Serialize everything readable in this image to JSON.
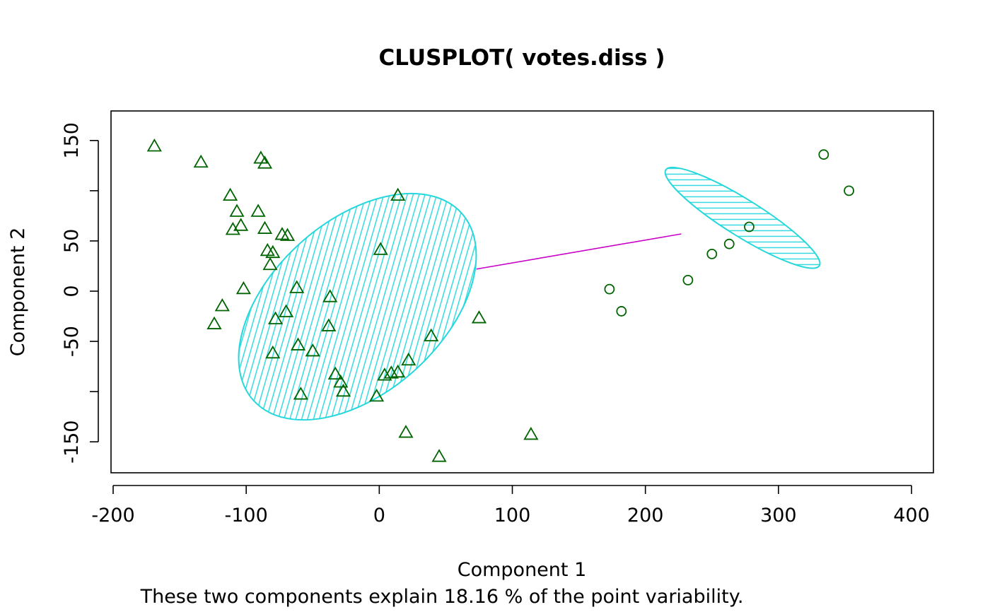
{
  "chart_data": {
    "type": "scatter",
    "title": "CLUSPLOT( votes.diss )",
    "xlabel": "Component 1",
    "ylabel": "Component 2",
    "subtitle": "These two components explain 18.16 % of the point variability.",
    "xlim": [
      -200,
      410
    ],
    "ylim": [
      -180,
      180
    ],
    "xticks": [
      -200,
      -100,
      0,
      100,
      200,
      300,
      400
    ],
    "yticks": [
      -150,
      -100,
      -50,
      0,
      50,
      100,
      150
    ],
    "ytick_labels": [
      "-150",
      "",
      "-50",
      "0",
      "50",
      "",
      "150"
    ],
    "grid": false,
    "colors": {
      "points": "#006400",
      "ellipse": "#26d7dc",
      "connector": "#c800c8",
      "axes": "#000000"
    },
    "clusters": [
      {
        "marker": "triangle",
        "center": [
          -16.4,
          -15.5
        ],
        "ellipse": {
          "semi_major": 198,
          "semi_minor": 121,
          "angle_deg": -42
        },
        "points": [
          [
            -169,
            144
          ],
          [
            -134,
            128
          ],
          [
            -89,
            132
          ],
          [
            -86,
            127
          ],
          [
            -112,
            95
          ],
          [
            -107,
            79
          ],
          [
            -91,
            79
          ],
          [
            -104,
            65
          ],
          [
            -110,
            61
          ],
          [
            -86,
            62
          ],
          [
            -73,
            56
          ],
          [
            -69,
            55
          ],
          [
            -84,
            40
          ],
          [
            -80,
            38
          ],
          [
            -82,
            26
          ],
          [
            -102,
            2
          ],
          [
            -62,
            3
          ],
          [
            14,
            95
          ],
          [
            1,
            41
          ],
          [
            -118,
            -15
          ],
          [
            -124,
            -33
          ],
          [
            -70,
            -21
          ],
          [
            -78,
            -28
          ],
          [
            -37,
            -6
          ],
          [
            -38,
            -35
          ],
          [
            -61,
            -54
          ],
          [
            -80,
            -62
          ],
          [
            -50,
            -60
          ],
          [
            75,
            -27
          ],
          [
            39,
            -45
          ],
          [
            22,
            -69
          ],
          [
            14,
            -81
          ],
          [
            9,
            -82
          ],
          [
            4,
            -84
          ],
          [
            -33,
            -83
          ],
          [
            -29,
            -91
          ],
          [
            -27,
            -100
          ],
          [
            -59,
            -103
          ],
          [
            -2,
            -105
          ],
          [
            20,
            -141
          ],
          [
            114,
            -143
          ],
          [
            45,
            -165
          ]
        ]
      },
      {
        "marker": "circle",
        "center": [
          273,
          73
        ],
        "ellipse": {
          "semi_major": 128,
          "semi_minor": 26,
          "angle_deg": 32
        },
        "points": [
          [
            334,
            136
          ],
          [
            353,
            100
          ],
          [
            278,
            64
          ],
          [
            263,
            47
          ],
          [
            250,
            37
          ],
          [
            232,
            11
          ],
          [
            173,
            2
          ],
          [
            182,
            -20
          ]
        ]
      }
    ],
    "connector": {
      "from": [
        73,
        22
      ],
      "to": [
        227,
        57
      ]
    }
  }
}
